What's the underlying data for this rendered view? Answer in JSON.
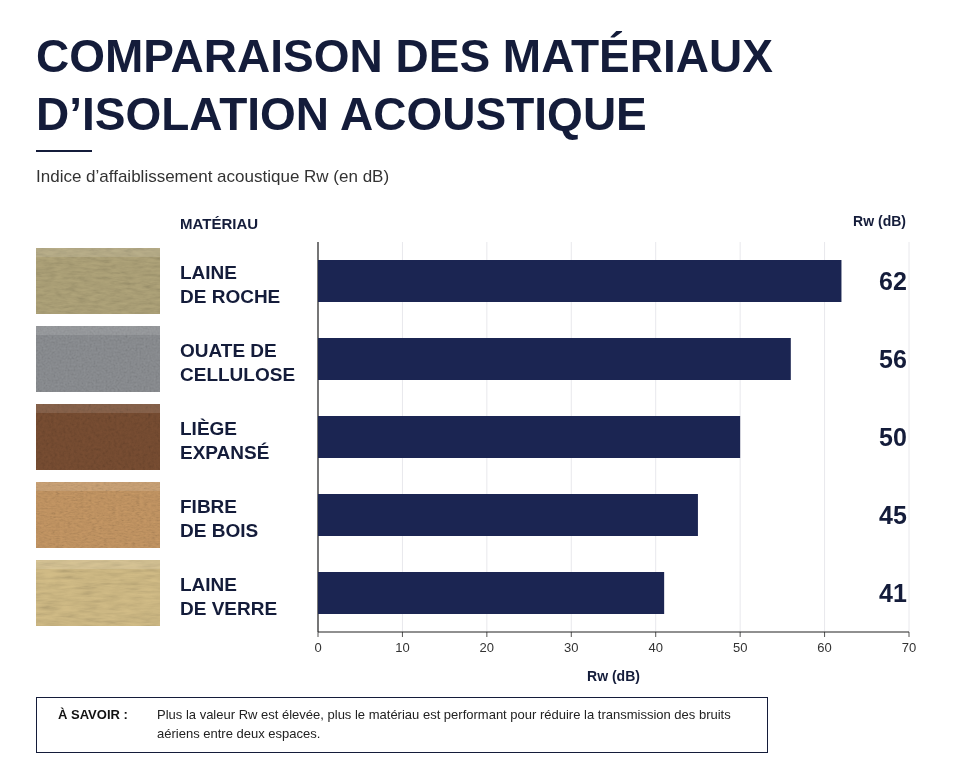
{
  "chart_data": {
    "type": "bar",
    "orientation": "horizontal",
    "title": "COMPARAISON DES MATÉRIAUX D’ISOLATION ACOUSTIQUE",
    "subtitle": "Indice d’affaiblissement acoustique Rw (en dB)",
    "category_header": "MATÉRIAU",
    "value_header": "Rw (dB)",
    "xlabel": "Rw (dB)",
    "categories": [
      "LAINE DE ROCHE",
      "OUATE DE CELLULOSE",
      "LIÈGE EXPANSÉ",
      "FIBRE DE BOIS",
      "LAINE DE VERRE"
    ],
    "values": [
      62,
      56,
      50,
      45,
      41
    ],
    "color": "#1b2552",
    "xlim": [
      0,
      70
    ],
    "xticks": [
      0,
      10,
      20,
      30,
      40,
      50,
      60,
      70
    ],
    "grid": true,
    "data_labels": true,
    "note": {
      "label": "À SAVOIR :",
      "text": "Plus la valeur Rw est élevée, plus le matériau est performant pour réduire la transmission des bruits aériens entre deux espaces."
    }
  }
}
